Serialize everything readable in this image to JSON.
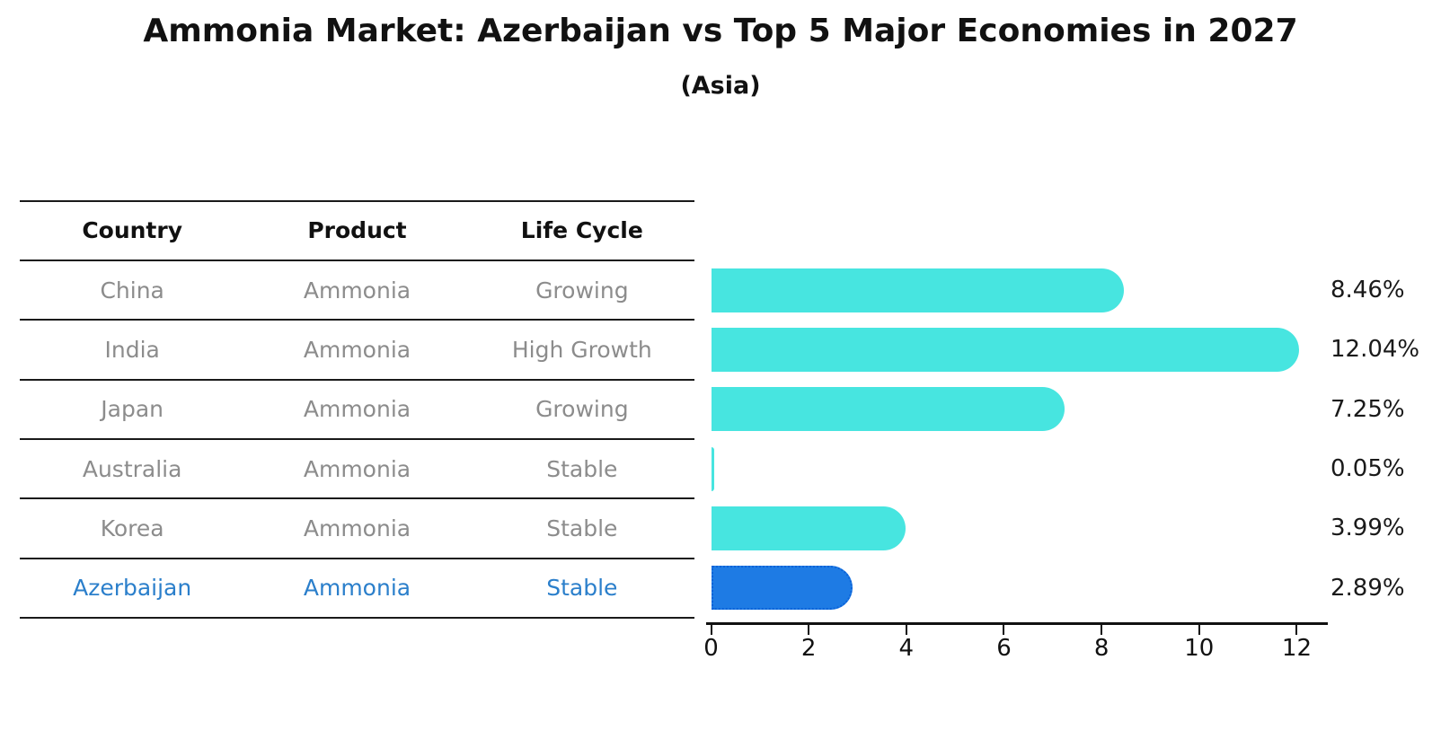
{
  "title": "Ammonia Market: Azerbaijan vs Top 5 Major Economies in 2027",
  "subtitle": "(Asia)",
  "table": {
    "headers": [
      "Country",
      "Product",
      "Life Cycle"
    ],
    "rows": [
      {
        "country": "China",
        "product": "Ammonia",
        "life_cycle": "Growing",
        "highlighted": false
      },
      {
        "country": "India",
        "product": "Ammonia",
        "life_cycle": "High Growth",
        "highlighted": false
      },
      {
        "country": "Japan",
        "product": "Ammonia",
        "life_cycle": "Growing",
        "highlighted": false
      },
      {
        "country": "Australia",
        "product": "Ammonia",
        "life_cycle": "Stable",
        "highlighted": false
      },
      {
        "country": "Korea",
        "product": "Ammonia",
        "life_cycle": "Stable",
        "highlighted": false
      },
      {
        "country": "Azerbaijan",
        "product": "Ammonia",
        "life_cycle": "Stable",
        "highlighted": true
      }
    ]
  },
  "chart_data": {
    "type": "bar",
    "orientation": "horizontal",
    "title": "Ammonia Market: Azerbaijan vs Top 5 Major Economies in 2027",
    "subtitle": "(Asia)",
    "categories": [
      "China",
      "India",
      "Japan",
      "Australia",
      "Korea",
      "Azerbaijan"
    ],
    "values": [
      8.46,
      12.04,
      7.25,
      0.05,
      3.99,
      2.89
    ],
    "value_labels": [
      "8.46%",
      "12.04%",
      "7.25%",
      "0.05%",
      "3.99%",
      "2.89%"
    ],
    "xticks": [
      0,
      2,
      4,
      6,
      8,
      10,
      12
    ],
    "xlim": [
      0,
      12.7
    ],
    "grid": false,
    "legend": false,
    "highlight_index": 5,
    "bar_color": "#47E5E0",
    "highlight_bar_color": "#1E7BE4",
    "highlight_border_color": "#0B62D8"
  },
  "colors": {
    "text_primary": "#111111",
    "text_muted": "#8C8C8C",
    "highlight_text": "#2B7FCB",
    "rule": "#1A1A1A"
  }
}
